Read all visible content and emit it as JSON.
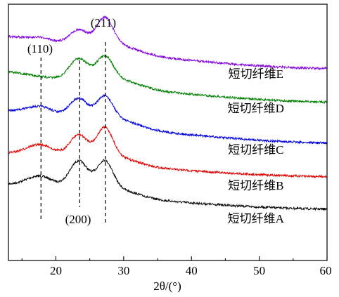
{
  "chart_data": {
    "type": "line",
    "title": "",
    "xlabel": "2θ/(°)",
    "ylabel": "",
    "xlim": [
      13,
      60
    ],
    "x_ticks": [
      20,
      30,
      40,
      50,
      60
    ],
    "x_tick_labels": [
      "20",
      "30",
      "40",
      "50",
      "60"
    ],
    "y_ticks_labeled": false,
    "grid": false,
    "legend": "none",
    "series": [
      {
        "name": "短切纤维A",
        "color": "#000000",
        "offset": 0,
        "label_x": 49.5
      },
      {
        "name": "短切纤维B",
        "color": "#e00000",
        "offset": 1,
        "label_x": 49.5
      },
      {
        "name": "短切纤维C",
        "color": "#0000e0",
        "offset": 2,
        "label_x": 49.5
      },
      {
        "name": "短切纤维D",
        "color": "#008000",
        "offset": 3,
        "label_x": 49.5
      },
      {
        "name": "短切纤维E",
        "color": "#8000e0",
        "offset": 4,
        "label_x": 49.5
      }
    ],
    "peaks": [
      {
        "label": "(110)",
        "x": 17.8
      },
      {
        "label": "(200)",
        "x": 23.5
      },
      {
        "label": "(211)",
        "x": 27.3
      }
    ]
  }
}
